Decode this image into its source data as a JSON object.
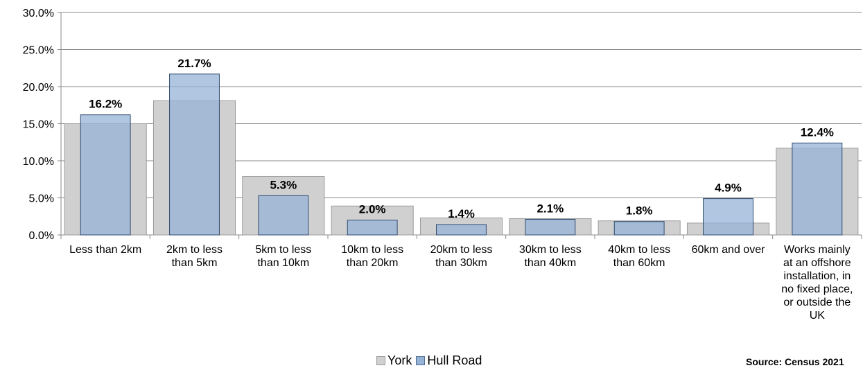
{
  "chart_data": {
    "type": "bar",
    "ylim": [
      0,
      30
    ],
    "yticks": [
      "0.0%",
      "5.0%",
      "10.0%",
      "15.0%",
      "20.0%",
      "25.0%",
      "30.0%"
    ],
    "categories": [
      [
        "Less than 2km"
      ],
      [
        "2km to less",
        "than 5km"
      ],
      [
        "5km to less",
        "than 10km"
      ],
      [
        "10km to less",
        "than 20km"
      ],
      [
        "20km to less",
        "than 30km"
      ],
      [
        "30km to less",
        "than 40km"
      ],
      [
        "40km to less",
        "than 60km"
      ],
      [
        "60km and over"
      ],
      [
        "Works mainly",
        "at an offshore",
        "installation, in",
        "no fixed place,",
        "or outside the",
        "UK"
      ]
    ],
    "series": [
      {
        "name": "York",
        "values": [
          15.0,
          18.1,
          7.9,
          3.9,
          2.3,
          2.2,
          1.9,
          1.6,
          11.7
        ],
        "color": "#d0d0d0"
      },
      {
        "name": "Hull Road",
        "values": [
          16.2,
          21.7,
          5.3,
          2.0,
          1.4,
          2.1,
          1.8,
          4.9,
          12.4
        ],
        "color": "#95b3d7",
        "data_labels": [
          "16.2%",
          "21.7%",
          "5.3%",
          "2.0%",
          "1.4%",
          "2.1%",
          "1.8%",
          "4.9%",
          "12.4%"
        ]
      }
    ],
    "grid": true,
    "legend_position": "bottom"
  },
  "legend": {
    "york": "York",
    "hull_road": "Hull Road"
  },
  "source_text": "Source: Census 2021"
}
